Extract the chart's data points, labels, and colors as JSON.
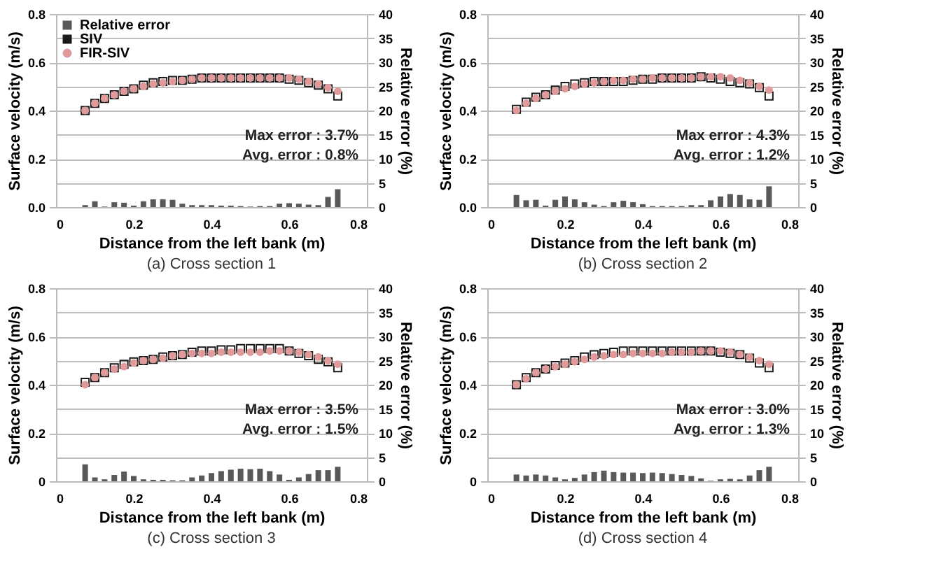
{
  "chart_data": [
    {
      "type": "scatter",
      "title": "(a) Cross section 1",
      "xlabel": "Distance from the left bank (m)",
      "ylabel": "Surface velocity (m/s)",
      "y2label": "Relative error (%)",
      "annotations": [
        "Max error : 3.7%",
        "Avg. error : 0.8%"
      ],
      "x": [
        0.075,
        0.1,
        0.125,
        0.15,
        0.175,
        0.2,
        0.225,
        0.25,
        0.275,
        0.3,
        0.325,
        0.35,
        0.375,
        0.4,
        0.425,
        0.45,
        0.475,
        0.5,
        0.525,
        0.55,
        0.575,
        0.6,
        0.625,
        0.65,
        0.675,
        0.7,
        0.725
      ],
      "series": [
        {
          "name": "Relative error",
          "type": "bar",
          "axis": "y2",
          "color": "#595959",
          "values": [
            0.4,
            1.2,
            0.1,
            1,
            0.9,
            0.3,
            1.2,
            1.6,
            1.6,
            1.5,
            0.7,
            0.4,
            0.4,
            0.4,
            0.3,
            0.3,
            0.2,
            0.1,
            0.2,
            0.2,
            0.7,
            0.8,
            0.7,
            0.5,
            0.4,
            2.1,
            3.7
          ]
        },
        {
          "name": "SIV",
          "marker": "square",
          "color": "#1a1a1a",
          "values": [
            0.4,
            0.43,
            0.45,
            0.465,
            0.48,
            0.49,
            0.505,
            0.515,
            0.52,
            0.525,
            0.525,
            0.53,
            0.535,
            0.535,
            0.535,
            0.535,
            0.535,
            0.535,
            0.535,
            0.535,
            0.535,
            0.53,
            0.525,
            0.515,
            0.505,
            0.49,
            0.46
          ]
        },
        {
          "name": "FIR-SIV",
          "marker": "circle",
          "color": "#e09a9a",
          "values": [
            0.4,
            0.43,
            0.45,
            0.465,
            0.48,
            0.49,
            0.5,
            0.51,
            0.515,
            0.52,
            0.525,
            0.53,
            0.535,
            0.535,
            0.535,
            0.535,
            0.535,
            0.535,
            0.535,
            0.535,
            0.535,
            0.535,
            0.53,
            0.52,
            0.51,
            0.495,
            0.48
          ]
        }
      ],
      "xlim": [
        0,
        0.8
      ],
      "xticks": [
        0,
        0.2,
        0.4,
        0.6,
        0.8
      ],
      "ylim": [
        0,
        0.8
      ],
      "yticks": [
        {
          "value": 0,
          "label": "0.0"
        },
        0.2,
        0.4,
        0.6,
        0.8
      ],
      "y2lim": [
        0,
        40
      ],
      "y2ticks": [
        0,
        5,
        10,
        15,
        20,
        25,
        30,
        35,
        40
      ],
      "grid": "y2",
      "legend": "top left"
    },
    {
      "type": "scatter",
      "title": "(b) Cross section 2",
      "xlabel": "Distance from the left bank (m)",
      "ylabel": "Surface velocity (m/s)",
      "y2label": "Relative error (%)",
      "annotations": [
        "Max error : 4.3%",
        "Avg. error : 1.2%"
      ],
      "x": [
        0.075,
        0.1,
        0.125,
        0.15,
        0.175,
        0.2,
        0.225,
        0.25,
        0.275,
        0.3,
        0.325,
        0.35,
        0.375,
        0.4,
        0.425,
        0.45,
        0.475,
        0.5,
        0.525,
        0.55,
        0.575,
        0.6,
        0.625,
        0.65,
        0.675,
        0.7,
        0.725
      ],
      "series": [
        {
          "name": "Relative error",
          "type": "bar",
          "axis": "y2",
          "color": "#595959",
          "values": [
            2.5,
            1.4,
            1.5,
            0.3,
            1.5,
            2.2,
            1.6,
            1,
            0.5,
            0.2,
            1,
            1.3,
            1,
            0.6,
            0.2,
            0.2,
            0.2,
            0.2,
            0.4,
            0.4,
            1.4,
            2.2,
            2.7,
            2.5,
            1.6,
            1.5,
            4.3
          ]
        },
        {
          "name": "SIV",
          "marker": "square",
          "color": "#1a1a1a",
          "values": [
            0.405,
            0.435,
            0.455,
            0.465,
            0.485,
            0.5,
            0.51,
            0.515,
            0.52,
            0.52,
            0.52,
            0.52,
            0.525,
            0.53,
            0.53,
            0.535,
            0.535,
            0.535,
            0.535,
            0.54,
            0.535,
            0.53,
            0.52,
            0.515,
            0.51,
            0.495,
            0.46
          ]
        },
        {
          "name": "FIR-SIV",
          "marker": "circle",
          "color": "#e09a9a",
          "values": [
            0.4,
            0.43,
            0.45,
            0.465,
            0.48,
            0.49,
            0.5,
            0.51,
            0.515,
            0.52,
            0.525,
            0.525,
            0.53,
            0.53,
            0.535,
            0.535,
            0.535,
            0.535,
            0.535,
            0.54,
            0.54,
            0.54,
            0.535,
            0.525,
            0.515,
            0.5,
            0.485
          ]
        }
      ],
      "xlim": [
        0,
        0.8
      ],
      "xticks": [
        0,
        0.2,
        0.4,
        0.6,
        0.8
      ],
      "ylim": [
        0,
        0.8
      ],
      "yticks": [
        {
          "value": 0,
          "label": "0.0"
        },
        0.2,
        0.4,
        0.6,
        0.8
      ],
      "y2lim": [
        0,
        40
      ],
      "y2ticks": [
        0,
        5,
        10,
        15,
        20,
        25,
        30,
        35,
        40
      ],
      "grid": "y2",
      "legend": "top left"
    },
    {
      "type": "scatter",
      "title": "(c) Cross section 3",
      "xlabel": "Distance from the left bank (m)",
      "ylabel": "Surface velocity (m/s)",
      "y2label": "Relative error (%)",
      "annotations": [
        "Max error : 3.5%",
        "Avg. error : 1.5%"
      ],
      "x": [
        0.075,
        0.1,
        0.125,
        0.15,
        0.175,
        0.2,
        0.225,
        0.25,
        0.275,
        0.3,
        0.325,
        0.35,
        0.375,
        0.4,
        0.425,
        0.45,
        0.475,
        0.5,
        0.525,
        0.55,
        0.575,
        0.6,
        0.625,
        0.65,
        0.675,
        0.7,
        0.725
      ],
      "series": [
        {
          "name": "Relative error",
          "type": "bar",
          "axis": "y2",
          "color": "#595959",
          "values": [
            3.5,
            0.8,
            0.4,
            1.3,
            2,
            1.1,
            0.4,
            0.3,
            0.3,
            0.2,
            0.2,
            0.8,
            1.2,
            1.7,
            2.1,
            2.4,
            2.6,
            2.5,
            2.6,
            2.1,
            1.4,
            0.3,
            0.8,
            1.5,
            2.3,
            2.3,
            3
          ]
        },
        {
          "name": "SIV",
          "marker": "square",
          "color": "#1a1a1a",
          "values": [
            0.41,
            0.43,
            0.45,
            0.47,
            0.485,
            0.495,
            0.5,
            0.505,
            0.515,
            0.52,
            0.525,
            0.535,
            0.54,
            0.54,
            0.545,
            0.545,
            0.55,
            0.55,
            0.55,
            0.55,
            0.55,
            0.54,
            0.53,
            0.52,
            0.505,
            0.495,
            0.47
          ]
        },
        {
          "name": "FIR-SIV",
          "marker": "circle",
          "color": "#e09a9a",
          "values": [
            0.4,
            0.43,
            0.45,
            0.465,
            0.475,
            0.49,
            0.5,
            0.505,
            0.51,
            0.52,
            0.525,
            0.53,
            0.53,
            0.53,
            0.535,
            0.535,
            0.535,
            0.535,
            0.535,
            0.54,
            0.54,
            0.54,
            0.535,
            0.525,
            0.515,
            0.5,
            0.485
          ]
        }
      ],
      "xlim": [
        0,
        0.8
      ],
      "xticks": [
        0,
        0.2,
        0.4,
        0.6,
        0.8
      ],
      "ylim": [
        0,
        0.8
      ],
      "yticks": [
        0,
        0.2,
        0.4,
        0.6,
        0.8
      ],
      "y2lim": [
        0,
        40
      ],
      "y2ticks": [
        0,
        5,
        10,
        15,
        20,
        25,
        30,
        35,
        40
      ],
      "grid": "y2",
      "legend": "top left"
    },
    {
      "type": "scatter",
      "title": "(d) Cross section 4",
      "xlabel": "Distance from the left bank (m)",
      "ylabel": "Surface velocity (m/s)",
      "y2label": "Relative error (%)",
      "annotations": [
        "Max error : 3.0%",
        "Avg. error : 1.3%"
      ],
      "x": [
        0.075,
        0.1,
        0.125,
        0.15,
        0.175,
        0.2,
        0.225,
        0.25,
        0.275,
        0.3,
        0.325,
        0.35,
        0.375,
        0.4,
        0.425,
        0.45,
        0.475,
        0.5,
        0.525,
        0.55,
        0.575,
        0.6,
        0.625,
        0.65,
        0.675,
        0.7,
        0.725
      ],
      "series": [
        {
          "name": "Relative error",
          "type": "bar",
          "axis": "y2",
          "color": "#595959",
          "values": [
            1.4,
            1.2,
            1.4,
            1.2,
            0.8,
            0.4,
            0.7,
            1.4,
            1.9,
            2.2,
            1.9,
            1.8,
            1.8,
            1.7,
            1.8,
            1.7,
            1.5,
            1.3,
            1.1,
            0.6,
            0.1,
            0.4,
            0.5,
            0.4,
            1.2,
            2.3,
            3
          ]
        },
        {
          "name": "SIV",
          "marker": "square",
          "color": "#1a1a1a",
          "values": [
            0.4,
            0.43,
            0.45,
            0.465,
            0.48,
            0.49,
            0.5,
            0.515,
            0.525,
            0.53,
            0.535,
            0.54,
            0.54,
            0.54,
            0.54,
            0.54,
            0.54,
            0.54,
            0.54,
            0.54,
            0.54,
            0.535,
            0.53,
            0.525,
            0.51,
            0.49,
            0.47
          ]
        },
        {
          "name": "FIR-SIV",
          "marker": "circle",
          "color": "#e09a9a",
          "values": [
            0.4,
            0.425,
            0.45,
            0.465,
            0.475,
            0.485,
            0.495,
            0.505,
            0.515,
            0.52,
            0.525,
            0.525,
            0.53,
            0.53,
            0.53,
            0.53,
            0.535,
            0.535,
            0.535,
            0.54,
            0.54,
            0.54,
            0.535,
            0.525,
            0.515,
            0.5,
            0.485
          ]
        }
      ],
      "xlim": [
        0,
        0.8
      ],
      "xticks": [
        0,
        0.2,
        0.4,
        0.6,
        0.8
      ],
      "ylim": [
        0,
        0.8
      ],
      "yticks": [
        0,
        0.2,
        0.4,
        0.6,
        0.8
      ],
      "y2lim": [
        0,
        40
      ],
      "y2ticks": [
        0,
        5,
        10,
        15,
        20,
        25,
        30,
        35,
        40
      ],
      "grid": "y2",
      "legend": "top left"
    }
  ]
}
